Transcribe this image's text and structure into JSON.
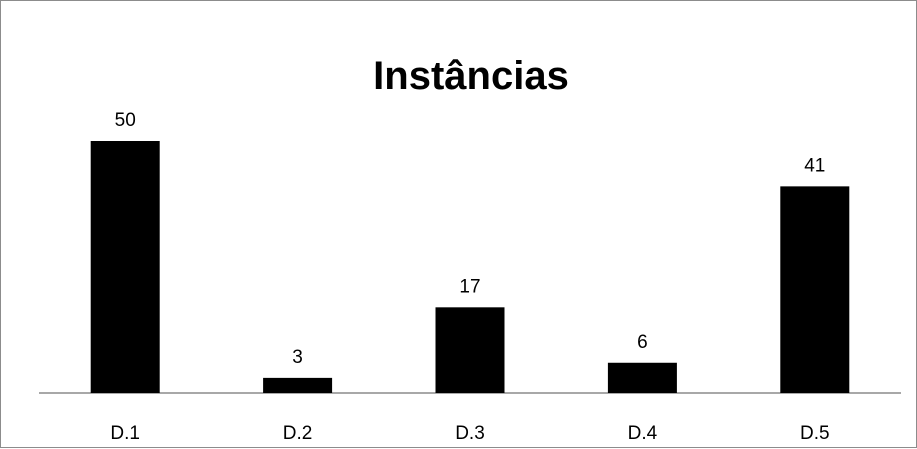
{
  "chart_data": {
    "type": "bar",
    "title": "Instâncias",
    "categories": [
      "D.1",
      "D.2",
      "D.3",
      "D.4",
      "D.5"
    ],
    "values": [
      50,
      3,
      17,
      6,
      41
    ],
    "xlabel": "",
    "ylabel": "",
    "ylim": [
      0,
      50
    ],
    "grid": false,
    "legend": "none",
    "bar_color": "#000000",
    "data_labels": true
  }
}
